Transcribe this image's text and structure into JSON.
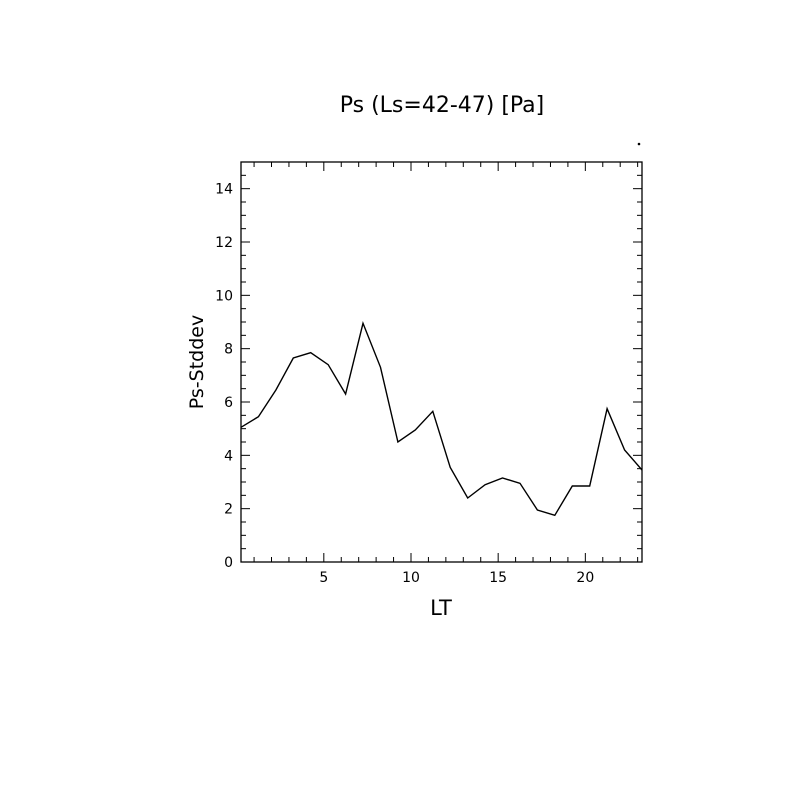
{
  "chart_data": {
    "type": "line",
    "title": "Ps (Ls=42-47) [Pa]",
    "xlabel": "LT",
    "ylabel": "Ps-Stddev",
    "xlim": [
      0.25,
      23.25
    ],
    "ylim": [
      0,
      15
    ],
    "x_ticks": [
      5,
      10,
      15,
      20
    ],
    "y_ticks": [
      0,
      2,
      4,
      6,
      8,
      10,
      12,
      14
    ],
    "grid": false,
    "series": [
      {
        "x": [
          0.25,
          1.25,
          2.25,
          3.25,
          4.25,
          5.25,
          6.25,
          7.25,
          8.25,
          9.25,
          10.25,
          11.25,
          12.25,
          13.25,
          14.25,
          15.25,
          16.25,
          17.25,
          18.25,
          19.25,
          20.25,
          21.25,
          22.25,
          23.25
        ],
        "values": [
          5.05,
          5.45,
          6.45,
          7.65,
          7.85,
          7.4,
          6.3,
          8.95,
          7.3,
          4.5,
          4.95,
          5.65,
          3.55,
          2.4,
          2.9,
          3.15,
          2.95,
          1.95,
          1.75,
          2.85,
          2.85,
          5.75,
          4.2,
          3.45
        ],
        "color": "#000000"
      }
    ]
  }
}
